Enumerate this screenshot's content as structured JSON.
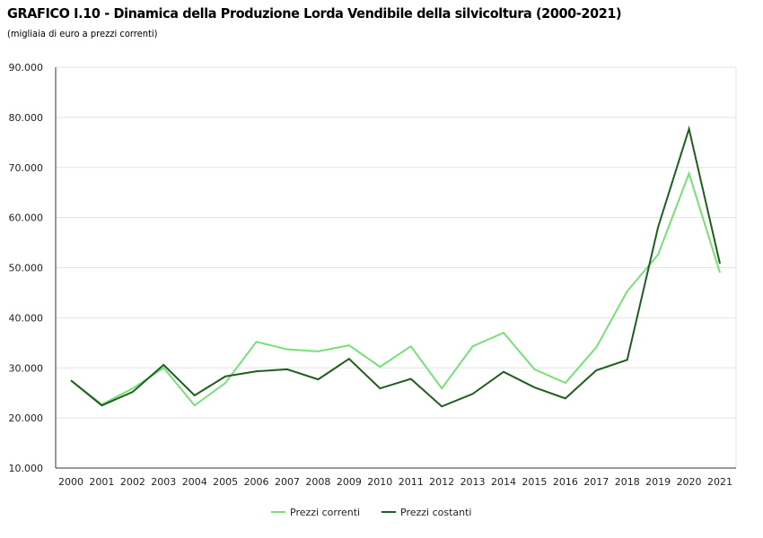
{
  "chart_data": {
    "type": "line",
    "title": "GRAFICO I.10 - Dinamica della Produzione Lorda Vendibile della silvicoltura (2000-2021)",
    "subtitle": "(migliaia di euro a prezzi correnti)",
    "xlabel": "",
    "ylabel": "",
    "ylim": [
      10000,
      90000
    ],
    "yticks": [
      10000,
      20000,
      30000,
      40000,
      50000,
      60000,
      70000,
      80000,
      90000
    ],
    "ytick_labels": [
      "10.000",
      "20.000",
      "30.000",
      "40.000",
      "50.000",
      "60.000",
      "70.000",
      "80.000",
      "90.000"
    ],
    "grid": true,
    "legend_position": "bottom-center",
    "categories": [
      "2000",
      "2001",
      "2002",
      "2003",
      "2004",
      "2005",
      "2006",
      "2007",
      "2008",
      "2009",
      "2010",
      "2011",
      "2012",
      "2013",
      "2014",
      "2015",
      "2016",
      "2017",
      "2018",
      "2019",
      "2020",
      "2021"
    ],
    "series": [
      {
        "name": "Prezzi correnti",
        "color": "#77e077",
        "values": [
          27500,
          22700,
          25900,
          30000,
          22500,
          27000,
          35200,
          33700,
          33300,
          34500,
          30200,
          34300,
          25900,
          34300,
          37000,
          29700,
          27000,
          34100,
          45300,
          52600,
          68800,
          49000
        ]
      },
      {
        "name": "Prezzi costanti",
        "color": "#1e5e1e",
        "values": [
          27500,
          22500,
          25200,
          30600,
          24500,
          28300,
          29300,
          29700,
          27700,
          31800,
          25900,
          27800,
          22300,
          24800,
          29200,
          26100,
          23900,
          29500,
          31600,
          58100,
          77700,
          50800
        ]
      }
    ]
  }
}
